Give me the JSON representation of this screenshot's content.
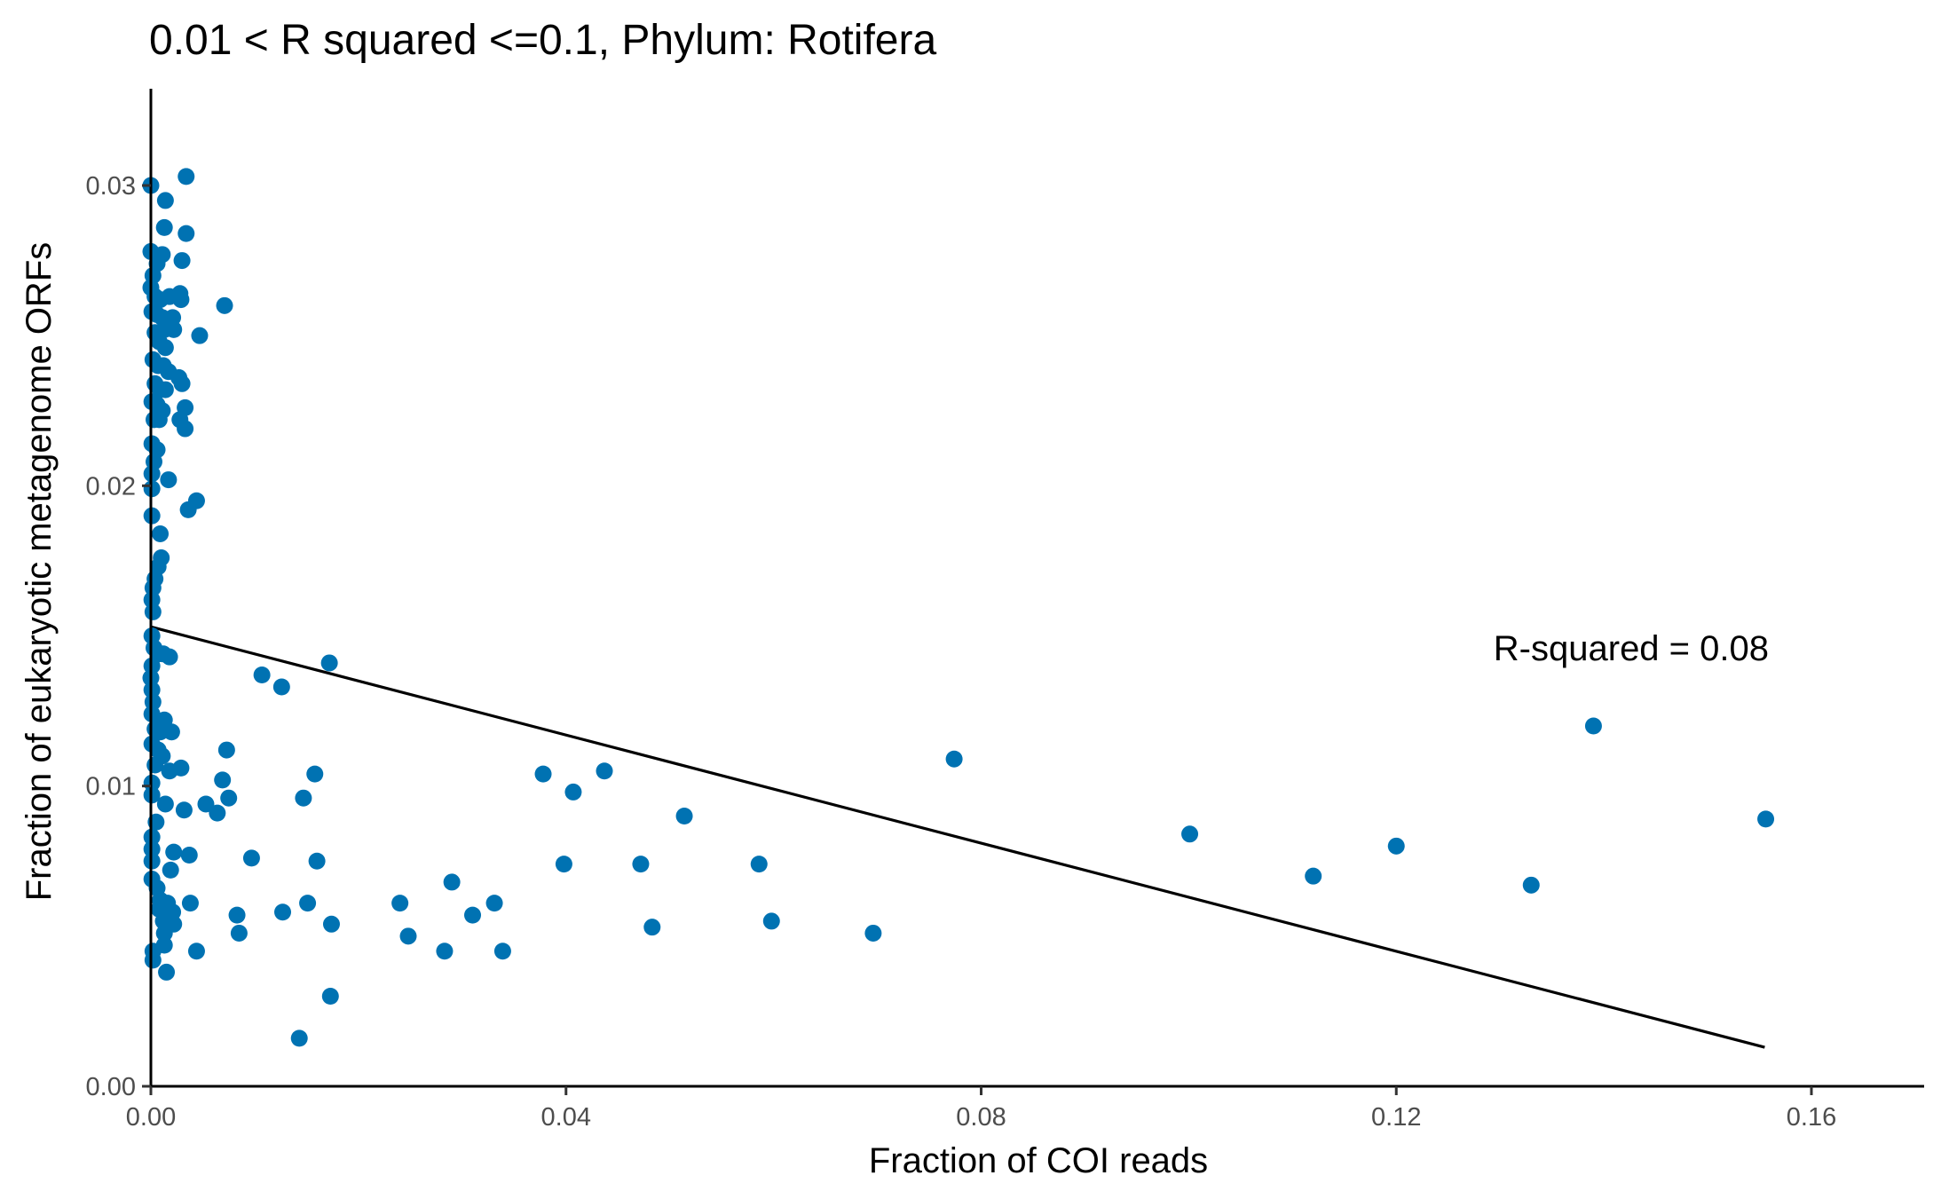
{
  "chart_data": {
    "type": "scatter",
    "title": "0.01 < R squared <=0.1, Phylum:  Rotifera",
    "xlabel": "Fraction of COI reads",
    "ylabel": "Fraction of eukaryotic metagenome ORFs",
    "xlim": [
      0,
      0.17
    ],
    "ylim": [
      0,
      0.033
    ],
    "x_ticks": [
      0.0,
      0.04,
      0.08,
      0.12,
      0.16
    ],
    "x_tick_labels": [
      "0.00",
      "0.04",
      "0.08",
      "0.12",
      "0.16"
    ],
    "y_ticks": [
      0.0,
      0.01,
      0.02,
      0.03
    ],
    "y_tick_labels": [
      "0.00",
      "0.01",
      "0.02",
      "0.03"
    ],
    "grid": false,
    "point_color": "#0072B2",
    "line_color": "#000000",
    "annotation": "R-squared =  0.08",
    "regression_line": {
      "x": [
        0.0,
        0.1555
      ],
      "y": [
        0.0153,
        0.0013
      ]
    },
    "points": [
      {
        "x": 0.0,
        "y": 0.03
      },
      {
        "x": 0.0034,
        "y": 0.0303
      },
      {
        "x": 0.0014,
        "y": 0.0295
      },
      {
        "x": 0.0013,
        "y": 0.0286
      },
      {
        "x": 0.0034,
        "y": 0.0284
      },
      {
        "x": 0.0,
        "y": 0.0278
      },
      {
        "x": 0.0006,
        "y": 0.0274
      },
      {
        "x": 0.0011,
        "y": 0.0277
      },
      {
        "x": 0.003,
        "y": 0.0275
      },
      {
        "x": 0.0002,
        "y": 0.027
      },
      {
        "x": 0.0,
        "y": 0.0266
      },
      {
        "x": 0.0004,
        "y": 0.0263
      },
      {
        "x": 0.0009,
        "y": 0.0262
      },
      {
        "x": 0.0018,
        "y": 0.0263
      },
      {
        "x": 0.0028,
        "y": 0.0264
      },
      {
        "x": 0.0029,
        "y": 0.0262
      },
      {
        "x": 0.0071,
        "y": 0.026
      },
      {
        "x": 0.0001,
        "y": 0.0258
      },
      {
        "x": 0.0006,
        "y": 0.0257
      },
      {
        "x": 0.0011,
        "y": 0.0256
      },
      {
        "x": 0.0016,
        "y": 0.0254
      },
      {
        "x": 0.0021,
        "y": 0.0256
      },
      {
        "x": 0.0004,
        "y": 0.0251
      },
      {
        "x": 0.0013,
        "y": 0.0252
      },
      {
        "x": 0.0022,
        "y": 0.0252
      },
      {
        "x": 0.0047,
        "y": 0.025
      },
      {
        "x": 0.0008,
        "y": 0.0248
      },
      {
        "x": 0.0014,
        "y": 0.0246
      },
      {
        "x": 0.0002,
        "y": 0.0242
      },
      {
        "x": 0.0007,
        "y": 0.024
      },
      {
        "x": 0.0012,
        "y": 0.024
      },
      {
        "x": 0.0017,
        "y": 0.0238
      },
      {
        "x": 0.0027,
        "y": 0.0236
      },
      {
        "x": 0.003,
        "y": 0.0234
      },
      {
        "x": 0.0004,
        "y": 0.0234
      },
      {
        "x": 0.0009,
        "y": 0.0232
      },
      {
        "x": 0.0014,
        "y": 0.0232
      },
      {
        "x": 0.0001,
        "y": 0.0228
      },
      {
        "x": 0.0006,
        "y": 0.0227
      },
      {
        "x": 0.0011,
        "y": 0.0225
      },
      {
        "x": 0.0033,
        "y": 0.0226
      },
      {
        "x": 0.0003,
        "y": 0.0222
      },
      {
        "x": 0.0008,
        "y": 0.0222
      },
      {
        "x": 0.0028,
        "y": 0.0222
      },
      {
        "x": 0.0033,
        "y": 0.0219
      },
      {
        "x": 0.0001,
        "y": 0.0214
      },
      {
        "x": 0.0006,
        "y": 0.0212
      },
      {
        "x": 0.0003,
        "y": 0.0208
      },
      {
        "x": 0.0001,
        "y": 0.0204
      },
      {
        "x": 0.0017,
        "y": 0.0202
      },
      {
        "x": 0.0001,
        "y": 0.0199
      },
      {
        "x": 0.0044,
        "y": 0.0195
      },
      {
        "x": 0.0036,
        "y": 0.0192
      },
      {
        "x": 0.0001,
        "y": 0.019
      },
      {
        "x": 0.0009,
        "y": 0.0184
      },
      {
        "x": 0.001,
        "y": 0.0176
      },
      {
        "x": 0.0007,
        "y": 0.0173
      },
      {
        "x": 0.0004,
        "y": 0.0169
      },
      {
        "x": 0.0002,
        "y": 0.0166
      },
      {
        "x": 0.0001,
        "y": 0.0162
      },
      {
        "x": 0.0002,
        "y": 0.0158
      },
      {
        "x": 0.0001,
        "y": 0.015
      },
      {
        "x": 0.0003,
        "y": 0.0146
      },
      {
        "x": 0.0007,
        "y": 0.0144
      },
      {
        "x": 0.0012,
        "y": 0.0144
      },
      {
        "x": 0.0018,
        "y": 0.0143
      },
      {
        "x": 0.0001,
        "y": 0.014
      },
      {
        "x": 0.0,
        "y": 0.0136
      },
      {
        "x": 0.0001,
        "y": 0.0132
      },
      {
        "x": 0.0002,
        "y": 0.0128
      },
      {
        "x": 0.0001,
        "y": 0.0124
      },
      {
        "x": 0.0013,
        "y": 0.0122
      },
      {
        "x": 0.0004,
        "y": 0.0119
      },
      {
        "x": 0.0009,
        "y": 0.0118
      },
      {
        "x": 0.002,
        "y": 0.0118
      },
      {
        "x": 0.0001,
        "y": 0.0114
      },
      {
        "x": 0.0007,
        "y": 0.0112
      },
      {
        "x": 0.0011,
        "y": 0.011
      },
      {
        "x": 0.0004,
        "y": 0.0107
      },
      {
        "x": 0.0018,
        "y": 0.0105
      },
      {
        "x": 0.0029,
        "y": 0.0106
      },
      {
        "x": 0.0001,
        "y": 0.0101
      },
      {
        "x": 0.0001,
        "y": 0.0097
      },
      {
        "x": 0.0014,
        "y": 0.0094
      },
      {
        "x": 0.0032,
        "y": 0.0092
      },
      {
        "x": 0.0005,
        "y": 0.0088
      },
      {
        "x": 0.0001,
        "y": 0.0083
      },
      {
        "x": 0.0001,
        "y": 0.0079
      },
      {
        "x": 0.0022,
        "y": 0.0078
      },
      {
        "x": 0.0037,
        "y": 0.0077
      },
      {
        "x": 0.0001,
        "y": 0.0075
      },
      {
        "x": 0.0019,
        "y": 0.0072
      },
      {
        "x": 0.0001,
        "y": 0.0069
      },
      {
        "x": 0.0006,
        "y": 0.0066
      },
      {
        "x": 0.0009,
        "y": 0.0062
      },
      {
        "x": 0.0016,
        "y": 0.0061
      },
      {
        "x": 0.0038,
        "y": 0.0061
      },
      {
        "x": 0.0008,
        "y": 0.0059
      },
      {
        "x": 0.0021,
        "y": 0.0058
      },
      {
        "x": 0.0012,
        "y": 0.0055
      },
      {
        "x": 0.0022,
        "y": 0.0054
      },
      {
        "x": 0.0013,
        "y": 0.0051
      },
      {
        "x": 0.0013,
        "y": 0.0047
      },
      {
        "x": 0.0044,
        "y": 0.0045
      },
      {
        "x": 0.0002,
        "y": 0.0045
      },
      {
        "x": 0.0002,
        "y": 0.0042
      },
      {
        "x": 0.0015,
        "y": 0.0038
      },
      {
        "x": 0.0107,
        "y": 0.0137
      },
      {
        "x": 0.0126,
        "y": 0.0133
      },
      {
        "x": 0.0172,
        "y": 0.0141
      },
      {
        "x": 0.0073,
        "y": 0.0112
      },
      {
        "x": 0.0158,
        "y": 0.0104
      },
      {
        "x": 0.0069,
        "y": 0.0102
      },
      {
        "x": 0.0147,
        "y": 0.0096
      },
      {
        "x": 0.0075,
        "y": 0.0096
      },
      {
        "x": 0.0053,
        "y": 0.0094
      },
      {
        "x": 0.0064,
        "y": 0.0091
      },
      {
        "x": 0.0097,
        "y": 0.0076
      },
      {
        "x": 0.016,
        "y": 0.0075
      },
      {
        "x": 0.0083,
        "y": 0.0057
      },
      {
        "x": 0.0127,
        "y": 0.0058
      },
      {
        "x": 0.0151,
        "y": 0.0061
      },
      {
        "x": 0.0174,
        "y": 0.0054
      },
      {
        "x": 0.0085,
        "y": 0.0051
      },
      {
        "x": 0.0173,
        "y": 0.003
      },
      {
        "x": 0.0143,
        "y": 0.0016
      },
      {
        "x": 0.024,
        "y": 0.0061
      },
      {
        "x": 0.0248,
        "y": 0.005
      },
      {
        "x": 0.029,
        "y": 0.0068
      },
      {
        "x": 0.031,
        "y": 0.0057
      },
      {
        "x": 0.0331,
        "y": 0.0061
      },
      {
        "x": 0.0283,
        "y": 0.0045
      },
      {
        "x": 0.0339,
        "y": 0.0045
      },
      {
        "x": 0.0378,
        "y": 0.0104
      },
      {
        "x": 0.0407,
        "y": 0.0098
      },
      {
        "x": 0.0437,
        "y": 0.0105
      },
      {
        "x": 0.0398,
        "y": 0.0074
      },
      {
        "x": 0.0472,
        "y": 0.0074
      },
      {
        "x": 0.0483,
        "y": 0.0053
      },
      {
        "x": 0.0514,
        "y": 0.009
      },
      {
        "x": 0.0586,
        "y": 0.0074
      },
      {
        "x": 0.0598,
        "y": 0.0055
      },
      {
        "x": 0.0696,
        "y": 0.0051
      },
      {
        "x": 0.0774,
        "y": 0.0109
      },
      {
        "x": 0.1001,
        "y": 0.0084
      },
      {
        "x": 0.112,
        "y": 0.007
      },
      {
        "x": 0.12,
        "y": 0.008
      },
      {
        "x": 0.133,
        "y": 0.0067
      },
      {
        "x": 0.139,
        "y": 0.012
      },
      {
        "x": 0.1556,
        "y": 0.0089
      }
    ]
  }
}
